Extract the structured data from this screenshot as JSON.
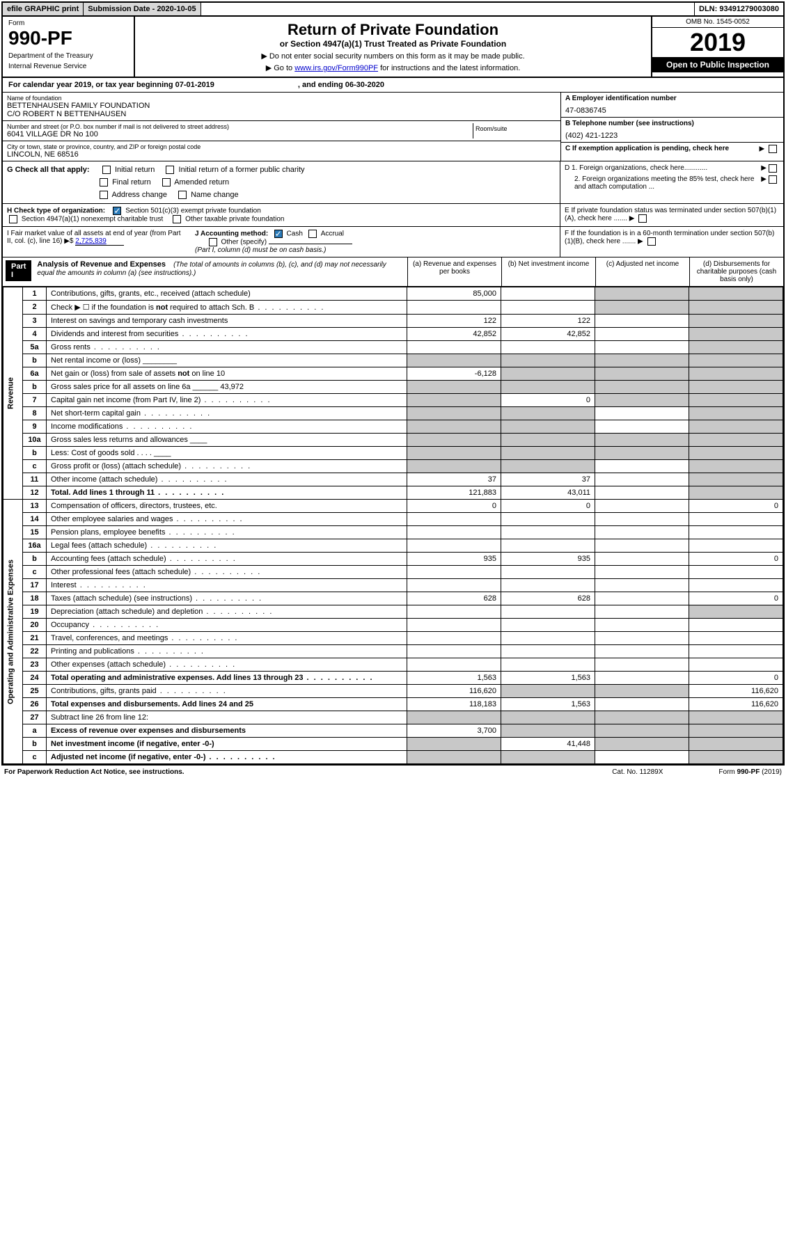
{
  "topbar": {
    "efile": "efile GRAPHIC print",
    "sub_date_label": "Submission Date - 2020-10-05",
    "dln": "DLN: 93491279003080"
  },
  "header": {
    "form_label": "Form",
    "form_no": "990-PF",
    "dept": "Department of the Treasury",
    "irs": "Internal Revenue Service",
    "title": "Return of Private Foundation",
    "subtitle": "or Section 4947(a)(1) Trust Treated as Private Foundation",
    "instr1": "▶ Do not enter social security numbers on this form as it may be made public.",
    "instr2_pre": "▶ Go to ",
    "instr2_link": "www.irs.gov/Form990PF",
    "instr2_post": " for instructions and the latest information.",
    "omb": "OMB No. 1545-0052",
    "year": "2019",
    "open": "Open to Public Inspection"
  },
  "calyear": {
    "text": "For calendar year 2019, or tax year beginning 07-01-2019",
    "ending": ", and ending 06-30-2020"
  },
  "info": {
    "name_label": "Name of foundation",
    "name1": "BETTENHAUSEN FAMILY FOUNDATION",
    "name2": "C/O ROBERT N BETTENHAUSEN",
    "addr_label": "Number and street (or P.O. box number if mail is not delivered to street address)",
    "addr": "6041 VILLAGE DR No 100",
    "room_label": "Room/suite",
    "city_label": "City or town, state or province, country, and ZIP or foreign postal code",
    "city": "LINCOLN, NE  68516",
    "ein_label": "A Employer identification number",
    "ein": "47-0836745",
    "phone_label": "B Telephone number (see instructions)",
    "phone": "(402) 421-1223",
    "c_label": "C If exemption application is pending, check here"
  },
  "section_g": {
    "label": "G Check all that apply:",
    "opts": [
      "Initial return",
      "Initial return of a former public charity",
      "Final return",
      "Amended return",
      "Address change",
      "Name change"
    ]
  },
  "section_d": {
    "d1": "D 1. Foreign organizations, check here............",
    "d2": "2. Foreign organizations meeting the 85% test, check here and attach computation ...",
    "e": "E  If private foundation status was terminated under section 507(b)(1)(A), check here .......",
    "f": "F  If the foundation is in a 60-month termination under section 507(b)(1)(B), check here ......."
  },
  "section_h": {
    "label": "H Check type of organization:",
    "opt1": "Section 501(c)(3) exempt private foundation",
    "opt2": "Section 4947(a)(1) nonexempt charitable trust",
    "opt3": "Other taxable private foundation"
  },
  "section_i": {
    "label": "I Fair market value of all assets at end of year (from Part II, col. (c), line 16) ▶$ ",
    "value": "2,725,839"
  },
  "section_j": {
    "label": "J Accounting method:",
    "cash": "Cash",
    "accrual": "Accrual",
    "other": "Other (specify)",
    "note": "(Part I, column (d) must be on cash basis.)"
  },
  "part1": {
    "label": "Part I",
    "title": "Analysis of Revenue and Expenses",
    "desc": "(The total of amounts in columns (b), (c), and (d) may not necessarily equal the amounts in column (a) (see instructions).)",
    "cols": {
      "a": "(a)   Revenue and expenses per books",
      "b": "(b)  Net investment income",
      "c": "(c)  Adjusted net income",
      "d": "(d)  Disbursements for charitable purposes (cash basis only)"
    }
  },
  "sidelabels": {
    "revenue": "Revenue",
    "expenses": "Operating and Administrative Expenses"
  },
  "rows": [
    {
      "n": "1",
      "d": "Contributions, gifts, grants, etc., received (attach schedule)",
      "a": "85,000",
      "b": "",
      "c": "s",
      "dd": "s"
    },
    {
      "n": "2",
      "d": "Check ▶ ☐ if the foundation is not required to attach Sch. B",
      "dots": true,
      "a": "",
      "b": "",
      "c": "s",
      "dd": "s"
    },
    {
      "n": "3",
      "d": "Interest on savings and temporary cash investments",
      "a": "122",
      "b": "122",
      "c": "",
      "dd": "s"
    },
    {
      "n": "4",
      "d": "Dividends and interest from securities",
      "dots": true,
      "a": "42,852",
      "b": "42,852",
      "c": "",
      "dd": "s"
    },
    {
      "n": "5a",
      "d": "Gross rents",
      "dots": true,
      "a": "",
      "b": "",
      "c": "",
      "dd": "s"
    },
    {
      "n": "b",
      "d": "Net rental income or (loss)  ________",
      "a": "s",
      "b": "s",
      "c": "s",
      "dd": "s"
    },
    {
      "n": "6a",
      "d": "Net gain or (loss) from sale of assets not on line 10",
      "a": "-6,128",
      "b": "s",
      "c": "s",
      "dd": "s"
    },
    {
      "n": "b",
      "d": "Gross sales price for all assets on line 6a ______ 43,972",
      "a": "s",
      "b": "s",
      "c": "s",
      "dd": "s"
    },
    {
      "n": "7",
      "d": "Capital gain net income (from Part IV, line 2)",
      "dots": true,
      "a": "s",
      "b": "0",
      "c": "s",
      "dd": "s"
    },
    {
      "n": "8",
      "d": "Net short-term capital gain",
      "dots": true,
      "a": "s",
      "b": "s",
      "c": "",
      "dd": "s"
    },
    {
      "n": "9",
      "d": "Income modifications",
      "dots": true,
      "a": "s",
      "b": "s",
      "c": "",
      "dd": "s"
    },
    {
      "n": "10a",
      "d": "Gross sales less returns and allowances  ____",
      "a": "s",
      "b": "s",
      "c": "s",
      "dd": "s"
    },
    {
      "n": "b",
      "d": "Less: Cost of goods sold     . . . .  ____",
      "a": "s",
      "b": "s",
      "c": "s",
      "dd": "s"
    },
    {
      "n": "c",
      "d": "Gross profit or (loss) (attach schedule)",
      "dots": true,
      "a": "s",
      "b": "s",
      "c": "",
      "dd": "s"
    },
    {
      "n": "11",
      "d": "Other income (attach schedule)",
      "dots": true,
      "a": "37",
      "b": "37",
      "c": "",
      "dd": "s"
    },
    {
      "n": "12",
      "d": "Total. Add lines 1 through 11",
      "dots": true,
      "bold": true,
      "a": "121,883",
      "b": "43,011",
      "c": "",
      "dd": "s"
    },
    {
      "n": "13",
      "d": "Compensation of officers, directors, trustees, etc.",
      "a": "0",
      "b": "0",
      "c": "",
      "dd": "0"
    },
    {
      "n": "14",
      "d": "Other employee salaries and wages",
      "dots": true,
      "a": "",
      "b": "",
      "c": "",
      "dd": ""
    },
    {
      "n": "15",
      "d": "Pension plans, employee benefits",
      "dots": true,
      "a": "",
      "b": "",
      "c": "",
      "dd": ""
    },
    {
      "n": "16a",
      "d": "Legal fees (attach schedule)",
      "dots": true,
      "a": "",
      "b": "",
      "c": "",
      "dd": ""
    },
    {
      "n": "b",
      "d": "Accounting fees (attach schedule)",
      "dots": true,
      "a": "935",
      "b": "935",
      "c": "",
      "dd": "0"
    },
    {
      "n": "c",
      "d": "Other professional fees (attach schedule)",
      "dots": true,
      "a": "",
      "b": "",
      "c": "",
      "dd": ""
    },
    {
      "n": "17",
      "d": "Interest",
      "dots": true,
      "a": "",
      "b": "",
      "c": "",
      "dd": ""
    },
    {
      "n": "18",
      "d": "Taxes (attach schedule) (see instructions)",
      "dots": true,
      "a": "628",
      "b": "628",
      "c": "",
      "dd": "0"
    },
    {
      "n": "19",
      "d": "Depreciation (attach schedule) and depletion",
      "dots": true,
      "a": "",
      "b": "",
      "c": "",
      "dd": "s"
    },
    {
      "n": "20",
      "d": "Occupancy",
      "dots": true,
      "a": "",
      "b": "",
      "c": "",
      "dd": ""
    },
    {
      "n": "21",
      "d": "Travel, conferences, and meetings",
      "dots": true,
      "a": "",
      "b": "",
      "c": "",
      "dd": ""
    },
    {
      "n": "22",
      "d": "Printing and publications",
      "dots": true,
      "a": "",
      "b": "",
      "c": "",
      "dd": ""
    },
    {
      "n": "23",
      "d": "Other expenses (attach schedule)",
      "dots": true,
      "a": "",
      "b": "",
      "c": "",
      "dd": ""
    },
    {
      "n": "24",
      "d": "Total operating and administrative expenses. Add lines 13 through 23",
      "dots": true,
      "bold": true,
      "a": "1,563",
      "b": "1,563",
      "c": "",
      "dd": "0"
    },
    {
      "n": "25",
      "d": "Contributions, gifts, grants paid",
      "dots": true,
      "a": "116,620",
      "b": "s",
      "c": "s",
      "dd": "116,620"
    },
    {
      "n": "26",
      "d": "Total expenses and disbursements. Add lines 24 and 25",
      "bold": true,
      "a": "118,183",
      "b": "1,563",
      "c": "",
      "dd": "116,620"
    },
    {
      "n": "27",
      "d": "Subtract line 26 from line 12:",
      "a": "s",
      "b": "s",
      "c": "s",
      "dd": "s"
    },
    {
      "n": "a",
      "d": "Excess of revenue over expenses and disbursements",
      "bold": true,
      "a": "3,700",
      "b": "s",
      "c": "s",
      "dd": "s"
    },
    {
      "n": "b",
      "d": "Net investment income (if negative, enter -0-)",
      "bold": true,
      "a": "s",
      "b": "41,448",
      "c": "s",
      "dd": "s"
    },
    {
      "n": "c",
      "d": "Adjusted net income (if negative, enter -0-)",
      "dots": true,
      "bold": true,
      "a": "s",
      "b": "s",
      "c": "",
      "dd": "s"
    }
  ],
  "footer": {
    "left": "For Paperwork Reduction Act Notice, see instructions.",
    "cat": "Cat. No. 11289X",
    "form": "Form 990-PF (2019)"
  },
  "colors": {
    "shaded": "#c8c8c8",
    "link": "#0000cc",
    "check": "#2b7bb9"
  }
}
